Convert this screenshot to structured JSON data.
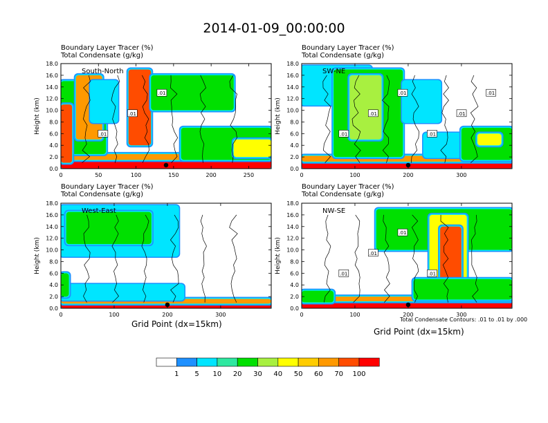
{
  "main_title": "2014-01-09_00:00:00",
  "colors": {
    "white": "#ffffff",
    "blue": "#1e90ff",
    "cyan": "#00e5ff",
    "aqua_green": "#2ee8a0",
    "green": "#00e000",
    "lime": "#a8f040",
    "yellow": "#ffff00",
    "gold": "#ffcc00",
    "orange": "#ff9900",
    "red_orange": "#ff4c00",
    "red": "#ff0000",
    "contour": "#000000"
  },
  "shared": {
    "ylabel": "Height (km)",
    "y_ticks": [
      "0.0",
      "2.0",
      "4.0",
      "6.0",
      "8.0",
      "10.0",
      "12.0",
      "14.0",
      "16.0",
      "18.0"
    ],
    "ylim": [
      0,
      18
    ],
    "xlabel": "Grid Point (dx=15km)",
    "contour_info": "Total Condensate Contours: .01 to .01 by .000"
  },
  "chart_data": [
    {
      "type": "heatmap",
      "title_line1": "Boundary Layer Tracer   (%)",
      "title_line2": "Total Condensate   (g/kg)",
      "label": "South-North",
      "xlim": [
        0,
        280
      ],
      "x_ticks": [
        0,
        50,
        100,
        150,
        200,
        250
      ],
      "ylim": [
        0,
        18
      ],
      "marker_x": 140,
      "contour_labels": [
        ".01",
        ".01",
        ".01"
      ],
      "features": [
        {
          "x": [
            0,
            280
          ],
          "y": [
            0,
            1.5
          ],
          "level": "red"
        },
        {
          "x": [
            0,
            280
          ],
          "y": [
            1.5,
            2.5
          ],
          "level": "orange"
        },
        {
          "x": [
            0,
            60
          ],
          "y": [
            2.5,
            15
          ],
          "level": "green"
        },
        {
          "x": [
            20,
            55
          ],
          "y": [
            5,
            16
          ],
          "level": "orange"
        },
        {
          "x": [
            0,
            15
          ],
          "y": [
            1,
            11
          ],
          "level": "red_orange"
        },
        {
          "x": [
            40,
            75
          ],
          "y": [
            8,
            15
          ],
          "level": "cyan"
        },
        {
          "x": [
            90,
            120
          ],
          "y": [
            4,
            17
          ],
          "level": "red_orange"
        },
        {
          "x": [
            120,
            230
          ],
          "y": [
            10,
            16
          ],
          "level": "green"
        },
        {
          "x": [
            160,
            280
          ],
          "y": [
            1.5,
            7
          ],
          "level": "green"
        },
        {
          "x": [
            230,
            280
          ],
          "y": [
            2,
            5
          ],
          "level": "yellow"
        }
      ]
    },
    {
      "type": "heatmap",
      "title_line1": "Boundary Layer Tracer   (%)",
      "title_line2": "Total Condensate   (g/kg)",
      "label": "SW-NE",
      "xlim": [
        0,
        395
      ],
      "x_ticks": [
        0,
        100,
        200,
        300
      ],
      "ylim": [
        0,
        18
      ],
      "marker_x": 200,
      "contour_labels": [
        ".01",
        ".01",
        ".01",
        ".01",
        ".01",
        ".01"
      ],
      "features": [
        {
          "x": [
            0,
            395
          ],
          "y": [
            0,
            1.2
          ],
          "level": "red"
        },
        {
          "x": [
            0,
            395
          ],
          "y": [
            1.2,
            2.2
          ],
          "level": "orange"
        },
        {
          "x": [
            0,
            130
          ],
          "y": [
            11,
            17.5
          ],
          "level": "cyan"
        },
        {
          "x": [
            60,
            190
          ],
          "y": [
            2,
            17
          ],
          "level": "green"
        },
        {
          "x": [
            90,
            150
          ],
          "y": [
            5,
            16
          ],
          "level": "lime"
        },
        {
          "x": [
            190,
            260
          ],
          "y": [
            8,
            15
          ],
          "level": "cyan"
        },
        {
          "x": [
            230,
            330
          ],
          "y": [
            2,
            6
          ],
          "level": "cyan"
        },
        {
          "x": [
            300,
            395
          ],
          "y": [
            1.5,
            7
          ],
          "level": "green"
        },
        {
          "x": [
            330,
            375
          ],
          "y": [
            4,
            6
          ],
          "level": "yellow"
        }
      ]
    },
    {
      "type": "heatmap",
      "title_line1": "Boundary Layer Tracer   (%)",
      "title_line2": "Total Condensate   (g/kg)",
      "label": "West-East",
      "xlim": [
        0,
        395
      ],
      "x_ticks": [
        0,
        100,
        200,
        300
      ],
      "ylim": [
        0,
        18
      ],
      "marker_x": 200,
      "contour_labels": [],
      "features": [
        {
          "x": [
            0,
            395
          ],
          "y": [
            0,
            0.8
          ],
          "level": "red"
        },
        {
          "x": [
            0,
            395
          ],
          "y": [
            0.8,
            1.6
          ],
          "level": "orange"
        },
        {
          "x": [
            0,
            220
          ],
          "y": [
            9,
            17.5
          ],
          "level": "cyan"
        },
        {
          "x": [
            10,
            170
          ],
          "y": [
            11,
            16.5
          ],
          "level": "green"
        },
        {
          "x": [
            0,
            230
          ],
          "y": [
            1.5,
            4
          ],
          "level": "cyan"
        },
        {
          "x": [
            0,
            15
          ],
          "y": [
            2,
            6
          ],
          "level": "green"
        }
      ]
    },
    {
      "type": "heatmap",
      "title_line1": "Boundary Layer Tracer   (%)",
      "title_line2": "Total Condensate   (g/kg)",
      "label": "NW-SE",
      "xlim": [
        0,
        395
      ],
      "x_ticks": [
        0,
        100,
        200,
        300
      ],
      "ylim": [
        0,
        18
      ],
      "marker_x": 200,
      "contour_labels": [
        ".01",
        ".01",
        ".01",
        ".01"
      ],
      "features": [
        {
          "x": [
            0,
            395
          ],
          "y": [
            0,
            1.2
          ],
          "level": "red"
        },
        {
          "x": [
            0,
            395
          ],
          "y": [
            1.2,
            2
          ],
          "level": "orange"
        },
        {
          "x": [
            140,
            395
          ],
          "y": [
            10,
            17
          ],
          "level": "green"
        },
        {
          "x": [
            240,
            310
          ],
          "y": [
            2,
            16
          ],
          "level": "yellow"
        },
        {
          "x": [
            260,
            300
          ],
          "y": [
            4,
            14
          ],
          "level": "red_orange"
        },
        {
          "x": [
            0,
            60
          ],
          "y": [
            1,
            3
          ],
          "level": "green"
        },
        {
          "x": [
            210,
            395
          ],
          "y": [
            1.5,
            5
          ],
          "level": "green"
        }
      ]
    }
  ],
  "colorbar": {
    "levels": [
      "",
      "1",
      "5",
      "10",
      "20",
      "30",
      "40",
      "50",
      "60",
      "70",
      "100",
      ""
    ],
    "colors": [
      "#ffffff",
      "#1e90ff",
      "#00e5ff",
      "#2ee8a0",
      "#00e000",
      "#a8f040",
      "#ffff00",
      "#ffcc00",
      "#ff9900",
      "#ff4c00",
      "#ff0000"
    ]
  }
}
